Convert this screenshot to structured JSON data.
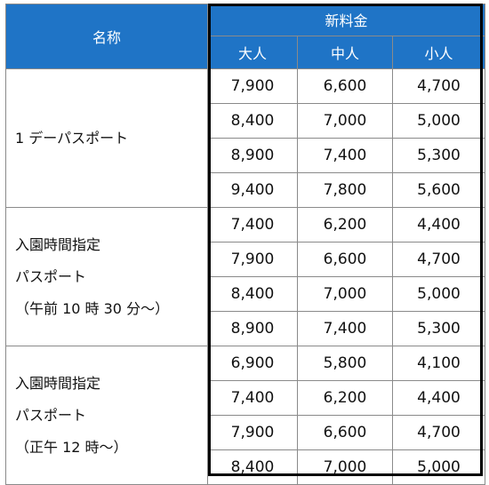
{
  "header": {
    "name": "名称",
    "group": "新料金",
    "columns": [
      "大人",
      "中人",
      "小人"
    ]
  },
  "groups": [
    {
      "name_lines": [
        "1 デーパスポート"
      ],
      "rows": [
        [
          "7,900",
          "6,600",
          "4,700"
        ],
        [
          "8,400",
          "7,000",
          "5,000"
        ],
        [
          "8,900",
          "7,400",
          "5,300"
        ],
        [
          "9,400",
          "7,800",
          "5,600"
        ]
      ]
    },
    {
      "name_lines": [
        "入園時間指定",
        "パスポート",
        "（午前 10 時 30 分～）"
      ],
      "rows": [
        [
          "7,400",
          "6,200",
          "4,400"
        ],
        [
          "7,900",
          "6,600",
          "4,700"
        ],
        [
          "8,400",
          "7,000",
          "5,000"
        ],
        [
          "8,900",
          "7,400",
          "5,300"
        ]
      ]
    },
    {
      "name_lines": [
        "入園時間指定",
        "パスポート",
        "（正午 12 時～）"
      ],
      "rows": [
        [
          "6,900",
          "5,800",
          "4,100"
        ],
        [
          "7,400",
          "6,200",
          "4,400"
        ],
        [
          "7,900",
          "6,600",
          "4,700"
        ],
        [
          "8,400",
          "7,000",
          "5,000"
        ]
      ]
    }
  ],
  "colors": {
    "header_bg": "#1f74c6",
    "header_text": "#ffffff",
    "frame": "#000000"
  }
}
